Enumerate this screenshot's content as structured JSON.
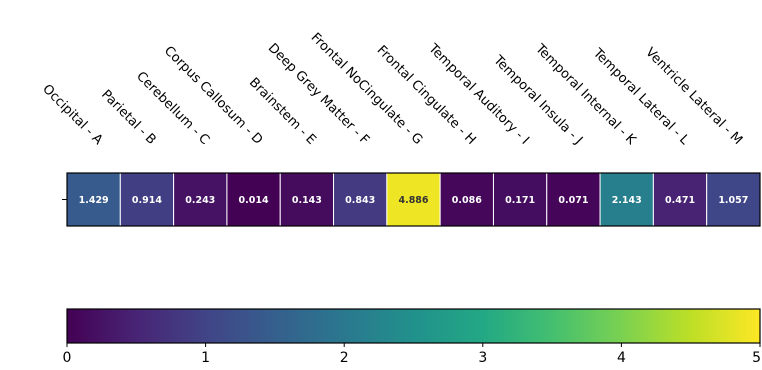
{
  "chart_data": {
    "type": "heatmap",
    "title": "",
    "xlabel": "",
    "ylabel": "",
    "categories": [
      "Occipital - A",
      "Parietal - B",
      "Cerebellum - C",
      "Corpus Callosum - D",
      "Brainstem - E",
      "Deep Grey Matter - F",
      "Frontal NoCingulate - G",
      "Frontal Cingulate - H",
      "Temporal Auditory - I",
      "Temporal Insula - J",
      "Temporal Internal - K",
      "Temporal Lateral - L",
      "Ventricle Lateral - M"
    ],
    "values": [
      1.429,
      0.914,
      0.243,
      0.014,
      0.143,
      0.843,
      4.886,
      0.086,
      0.171,
      0.071,
      2.143,
      0.471,
      1.057
    ],
    "value_labels": [
      "1.429",
      "0.914",
      "0.243",
      "0.014",
      "0.143",
      "0.843",
      "4.886",
      "0.086",
      "0.171",
      "0.071",
      "2.143",
      "0.471",
      "1.057"
    ],
    "colormap": "viridis",
    "colorbar": {
      "range": [
        0,
        5
      ],
      "ticks": [
        0,
        1,
        2,
        3,
        4,
        5
      ],
      "tick_labels": [
        "0",
        "1",
        "2",
        "3",
        "4",
        "5"
      ]
    }
  }
}
